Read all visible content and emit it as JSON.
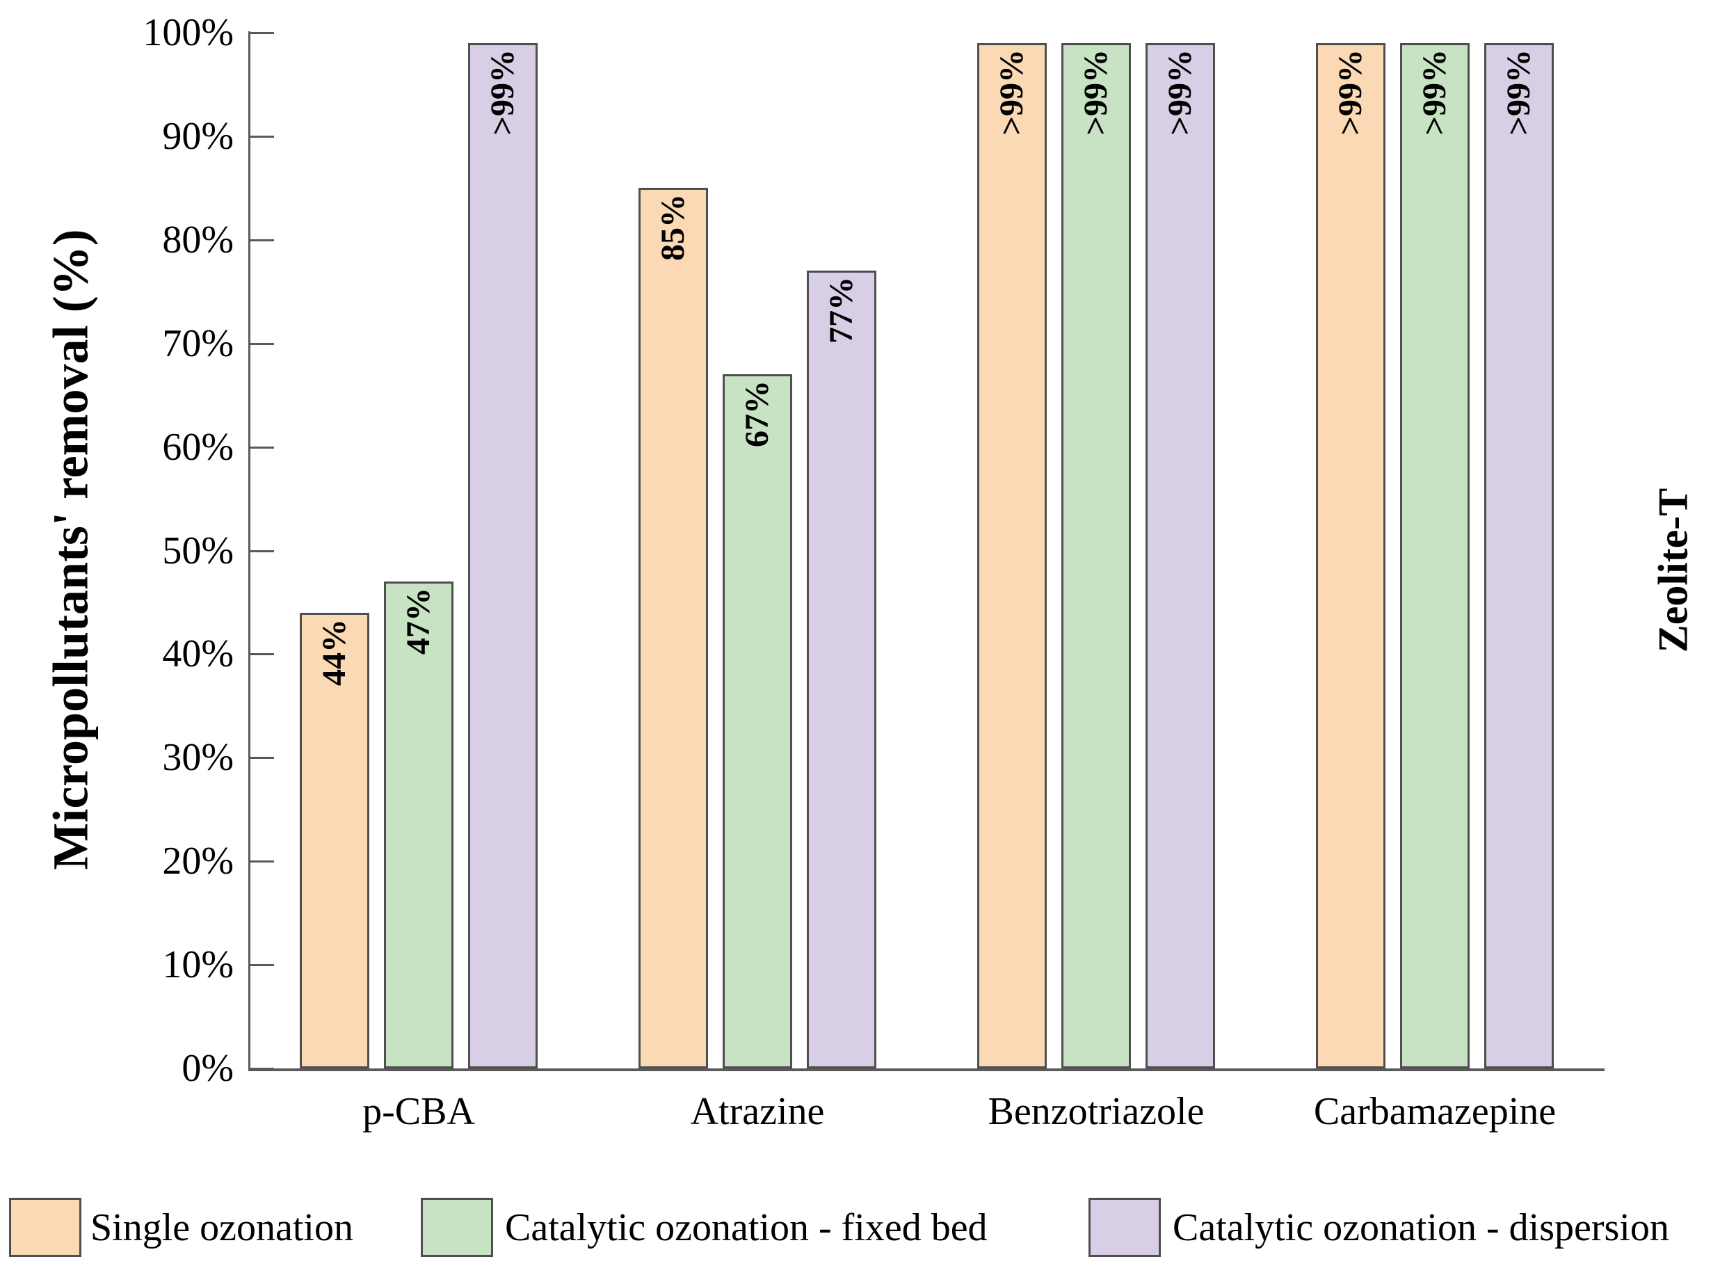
{
  "chart_data": {
    "type": "bar",
    "title": "",
    "categories": [
      "p-CBA",
      "Atrazine",
      "Benzotriazole",
      "Carbamazepine"
    ],
    "series": [
      {
        "name": "Single ozonation",
        "color": "#FBD9B4",
        "values": [
          44,
          85,
          99,
          99
        ],
        "labels": [
          "44%",
          "85%",
          ">99%",
          ">99%"
        ]
      },
      {
        "name": "Catalytic ozonation - fixed bed",
        "color": "#C7E3C3",
        "values": [
          47,
          67,
          99,
          99
        ],
        "labels": [
          "47%",
          "67%",
          ">99%",
          ">99%"
        ]
      },
      {
        "name": "Catalytic ozonation - dispersion",
        "color": "#D8CFE6",
        "values": [
          99,
          77,
          99,
          99
        ],
        "labels": [
          ">99%",
          "77%",
          ">99%",
          ">99%"
        ]
      }
    ],
    "value_note": "Bars labeled >99% are plotted at 99",
    "xlabel": "",
    "ylabel": "Micropollutants' removal (%)",
    "ylim": [
      0,
      100
    ],
    "ytick_step": 10,
    "ytick_labels": [
      "0%",
      "10%",
      "20%",
      "30%",
      "40%",
      "50%",
      "60%",
      "70%",
      "80%",
      "90%",
      "100%"
    ],
    "grid": false,
    "legend_position": "bottom",
    "annotation_right": "Zeolite-T"
  },
  "y_axis": {
    "title": "Micropollutants' removal (%)"
  },
  "right_annotation": "Zeolite-T",
  "legend": {
    "items": [
      {
        "label": "Single ozonation",
        "color": "#FBD9B4"
      },
      {
        "label": "Catalytic ozonation - fixed bed",
        "color": "#C7E3C3"
      },
      {
        "label": "Catalytic ozonation - dispersion",
        "color": "#D8CFE6"
      }
    ]
  },
  "colors": {
    "axis": "#595959",
    "bar_border": "#4F4F4F",
    "text": "#000000",
    "background": "#FFFFFF"
  }
}
